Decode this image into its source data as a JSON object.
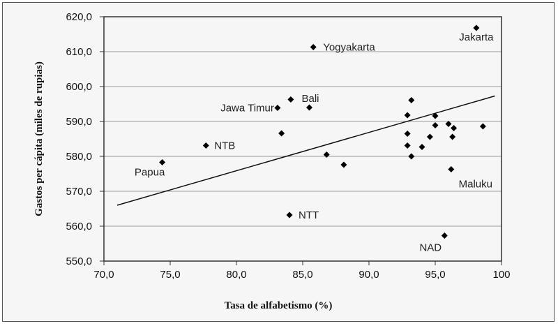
{
  "chart_data": {
    "type": "scatter",
    "title": "",
    "xlabel": "Tasa de alfabetismo (%)",
    "ylabel": "Gastos per cápita (miles de rupias)",
    "xlim": [
      70,
      100
    ],
    "ylim": [
      550,
      620
    ],
    "x_ticks": [
      "70,0",
      "75,0",
      "80,0",
      "85,0",
      "90,0",
      "95,0",
      "100"
    ],
    "y_ticks": [
      "550,0",
      "560,0",
      "570,0",
      "580,0",
      "590,0",
      "600,0",
      "610,0",
      "620,0"
    ],
    "grid": "horizontal",
    "points": [
      {
        "x": 98.1,
        "y": 616.8,
        "label": "Jakarta"
      },
      {
        "x": 85.8,
        "y": 611.3,
        "label": "Yogyakarta"
      },
      {
        "x": 85.5,
        "y": 594.0,
        "label": "Bali"
      },
      {
        "x": 84.1,
        "y": 596.3,
        "label": ""
      },
      {
        "x": 83.1,
        "y": 593.9,
        "label": "Jawa Timur"
      },
      {
        "x": 83.4,
        "y": 586.6,
        "label": ""
      },
      {
        "x": 77.7,
        "y": 583.1,
        "label": "NTB"
      },
      {
        "x": 74.4,
        "y": 578.3,
        "label": "Papua"
      },
      {
        "x": 84.0,
        "y": 563.2,
        "label": "NTT"
      },
      {
        "x": 86.8,
        "y": 580.5,
        "label": ""
      },
      {
        "x": 88.1,
        "y": 577.6,
        "label": ""
      },
      {
        "x": 93.2,
        "y": 596.1,
        "label": ""
      },
      {
        "x": 92.9,
        "y": 591.8,
        "label": ""
      },
      {
        "x": 92.9,
        "y": 586.5,
        "label": ""
      },
      {
        "x": 92.9,
        "y": 583.1,
        "label": ""
      },
      {
        "x": 93.2,
        "y": 580.0,
        "label": ""
      },
      {
        "x": 94.0,
        "y": 582.7,
        "label": ""
      },
      {
        "x": 94.6,
        "y": 585.6,
        "label": ""
      },
      {
        "x": 95.0,
        "y": 591.6,
        "label": ""
      },
      {
        "x": 95.0,
        "y": 588.9,
        "label": ""
      },
      {
        "x": 96.0,
        "y": 589.3,
        "label": ""
      },
      {
        "x": 96.4,
        "y": 588.1,
        "label": ""
      },
      {
        "x": 96.3,
        "y": 585.6,
        "label": ""
      },
      {
        "x": 98.6,
        "y": 588.6,
        "label": ""
      },
      {
        "x": 96.2,
        "y": 576.3,
        "label": "Maluku"
      },
      {
        "x": 95.7,
        "y": 557.3,
        "label": "NAD"
      }
    ],
    "trendline": {
      "x": [
        71.0,
        99.5
      ],
      "y": [
        566.0,
        597.3
      ]
    }
  }
}
